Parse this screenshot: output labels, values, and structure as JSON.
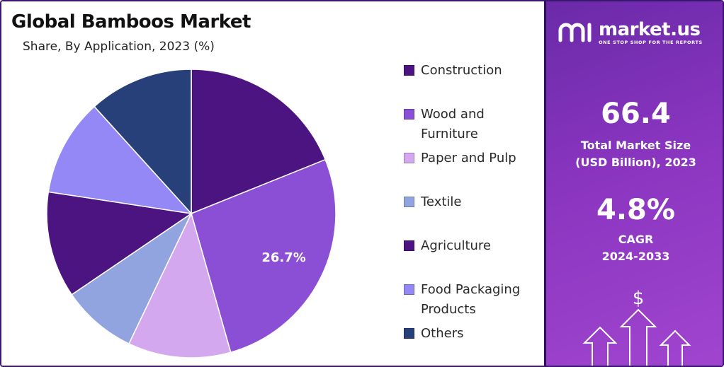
{
  "chart_data": {
    "type": "pie",
    "title": "Global Bamboos Market",
    "subtitle": "Share, By Application, 2023 (%)",
    "categories": [
      "Construction",
      "Wood and Furniture",
      "Paper and Pulp",
      "Textile",
      "Agriculture",
      "Food Packaging Products",
      "Others"
    ],
    "legend_lines": [
      [
        "Construction"
      ],
      [
        "Wood and",
        "Furniture"
      ],
      [
        "Paper and Pulp"
      ],
      [
        "Textile"
      ],
      [
        "Agriculture"
      ],
      [
        "Food Packaging",
        "Products"
      ],
      [
        "Others"
      ]
    ],
    "values": [
      18.9,
      26.7,
      11.5,
      8.4,
      11.9,
      10.9,
      11.7
    ],
    "data_labels": [
      "",
      "26.7%",
      "",
      "",
      "",
      "",
      ""
    ],
    "colors": [
      "#4b1480",
      "#8b4fd6",
      "#d4a8ef",
      "#92a4e0",
      "#4b1480",
      "#9488f7",
      "#27407a"
    ],
    "legend_position": "right",
    "start_angle": "12 o'clock, clockwise"
  },
  "sidebar": {
    "brand_name": "market.us",
    "brand_tagline": "ONE STOP SHOP FOR THE REPORTS",
    "market_size_value": "66.4",
    "market_size_label_1": "Total Market Size",
    "market_size_label_2": "(USD Billion), 2023",
    "cagr_value": "4.8%",
    "cagr_label_1": "CAGR",
    "cagr_label_2": "2024-2033",
    "dollar_symbol": "$",
    "icons": [
      "market-us-logo-icon",
      "dollar-arrows-icon"
    ]
  }
}
